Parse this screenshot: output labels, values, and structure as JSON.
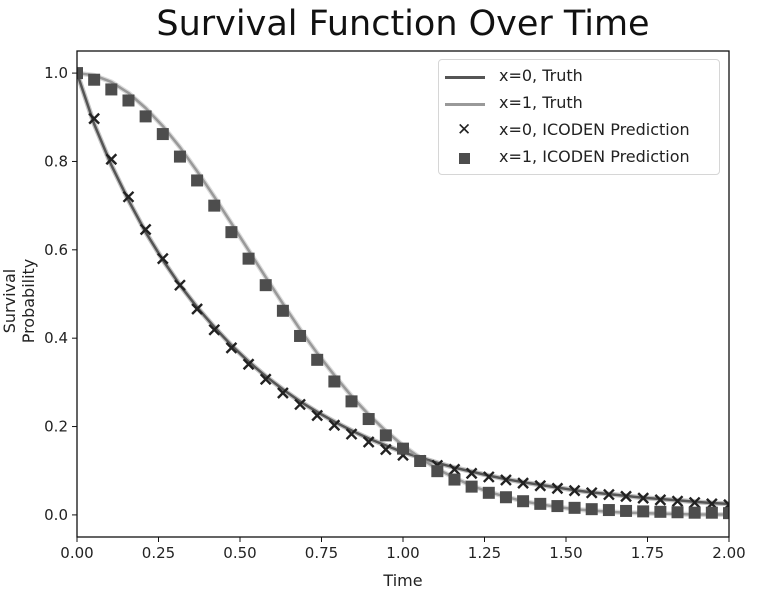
{
  "chart_data": {
    "type": "line",
    "title": "Survival Function Over Time",
    "xlabel": "Time",
    "ylabel": "Survival Probability",
    "xlim": [
      0.0,
      2.0
    ],
    "ylim": [
      -0.05,
      1.05
    ],
    "xticks": [
      "0.00",
      "0.25",
      "0.50",
      "0.75",
      "1.00",
      "1.25",
      "1.50",
      "1.75",
      "2.00"
    ],
    "yticks": [
      "0.0",
      "0.2",
      "0.4",
      "0.6",
      "0.8",
      "1.0"
    ],
    "grid": false,
    "legend_position": "upper right",
    "x": [
      0.0,
      0.0526,
      0.1053,
      0.1579,
      0.2105,
      0.2632,
      0.3158,
      0.3684,
      0.4211,
      0.4737,
      0.5263,
      0.5789,
      0.6316,
      0.6842,
      0.7368,
      0.7895,
      0.8421,
      0.8947,
      0.9474,
      1.0,
      1.0526,
      1.1053,
      1.1579,
      1.2105,
      1.2632,
      1.3158,
      1.3684,
      1.4211,
      1.4737,
      1.5263,
      1.5789,
      1.6316,
      1.6842,
      1.7368,
      1.7895,
      1.8421,
      1.8947,
      1.9474,
      2.0
    ],
    "series": [
      {
        "name": "x=0, Truth",
        "kind": "line",
        "color": "#555555",
        "values": [
          1.0,
          0.885,
          0.792,
          0.712,
          0.64,
          0.577,
          0.52,
          0.47,
          0.425,
          0.384,
          0.347,
          0.314,
          0.284,
          0.257,
          0.233,
          0.211,
          0.191,
          0.173,
          0.157,
          0.142,
          0.13,
          0.118,
          0.107,
          0.098,
          0.089,
          0.081,
          0.074,
          0.068,
          0.062,
          0.056,
          0.051,
          0.047,
          0.043,
          0.039,
          0.036,
          0.033,
          0.03,
          0.027,
          0.025
        ]
      },
      {
        "name": "x=1, Truth",
        "kind": "line",
        "color": "#999999",
        "values": [
          1.0,
          0.995,
          0.98,
          0.955,
          0.921,
          0.88,
          0.832,
          0.778,
          0.72,
          0.66,
          0.599,
          0.538,
          0.478,
          0.42,
          0.366,
          0.316,
          0.269,
          0.227,
          0.19,
          0.157,
          0.129,
          0.104,
          0.084,
          0.066,
          0.052,
          0.041,
          0.031,
          0.024,
          0.018,
          0.013,
          0.01,
          0.007,
          0.005,
          0.004,
          0.003,
          0.002,
          0.001,
          0.001,
          0.001
        ]
      },
      {
        "name": "x=0, ICODEN Prediction",
        "kind": "marker-x",
        "color": "#222222",
        "values": [
          1.0,
          0.897,
          0.805,
          0.72,
          0.646,
          0.58,
          0.52,
          0.466,
          0.419,
          0.378,
          0.341,
          0.307,
          0.276,
          0.25,
          0.225,
          0.203,
          0.183,
          0.165,
          0.148,
          0.135,
          0.123,
          0.112,
          0.103,
          0.094,
          0.086,
          0.079,
          0.072,
          0.066,
          0.06,
          0.055,
          0.05,
          0.046,
          0.042,
          0.038,
          0.034,
          0.031,
          0.028,
          0.025,
          0.023
        ]
      },
      {
        "name": "x=1, ICODEN Prediction",
        "kind": "marker-square",
        "color": "#4d4d4d",
        "values": [
          1.0,
          0.985,
          0.963,
          0.938,
          0.902,
          0.862,
          0.811,
          0.757,
          0.7,
          0.64,
          0.58,
          0.52,
          0.462,
          0.405,
          0.351,
          0.302,
          0.257,
          0.217,
          0.18,
          0.15,
          0.122,
          0.099,
          0.08,
          0.064,
          0.05,
          0.04,
          0.031,
          0.025,
          0.02,
          0.016,
          0.013,
          0.011,
          0.009,
          0.008,
          0.007,
          0.006,
          0.005,
          0.005,
          0.004
        ]
      }
    ]
  },
  "legend": {
    "items": [
      {
        "label": "x=0, Truth"
      },
      {
        "label": "x=1, Truth"
      },
      {
        "label": "x=0, ICODEN Prediction"
      },
      {
        "label": "x=1, ICODEN Prediction"
      }
    ]
  }
}
